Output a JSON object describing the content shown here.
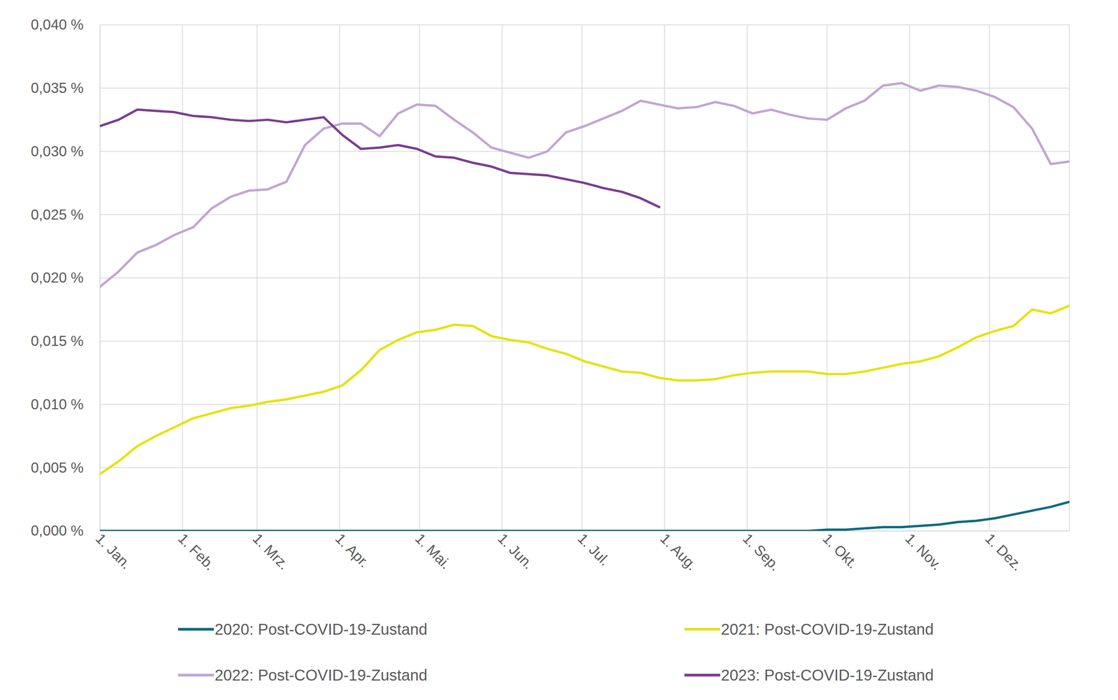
{
  "chart_data": {
    "type": "line",
    "x": [
      0,
      7,
      14,
      21,
      28,
      35,
      42,
      49,
      56,
      63,
      70,
      77,
      84,
      91,
      98,
      105,
      112,
      119,
      126,
      133,
      140,
      147,
      154,
      161,
      168,
      175,
      182,
      189,
      196,
      203,
      210,
      217,
      224,
      231,
      238,
      245,
      252,
      259,
      266,
      273,
      280,
      287,
      294,
      301,
      308,
      315,
      322,
      329,
      336,
      343,
      350,
      357,
      364
    ],
    "xlim": [
      0,
      364
    ],
    "xticks": [
      {
        "value": 0,
        "label": "1. Jan."
      },
      {
        "value": 31,
        "label": "1. Feb."
      },
      {
        "value": 59,
        "label": "1. Mrz."
      },
      {
        "value": 90,
        "label": "1. Apr."
      },
      {
        "value": 120,
        "label": "1. Mai."
      },
      {
        "value": 151,
        "label": "1. Jun."
      },
      {
        "value": 181,
        "label": "1. Jul."
      },
      {
        "value": 212,
        "label": "1. Aug."
      },
      {
        "value": 243,
        "label": "1. Sep."
      },
      {
        "value": 273,
        "label": "1. Okt."
      },
      {
        "value": 304,
        "label": "1. Nov."
      },
      {
        "value": 334,
        "label": "1. Dez."
      }
    ],
    "ylim": [
      0,
      0.04
    ],
    "yticks": [
      {
        "value": 0,
        "label": "0,000 %"
      },
      {
        "value": 0.005,
        "label": "0,005 %"
      },
      {
        "value": 0.01,
        "label": "0,010 %"
      },
      {
        "value": 0.015,
        "label": "0,015 %"
      },
      {
        "value": 0.02,
        "label": "0,020 %"
      },
      {
        "value": 0.025,
        "label": "0,025 %"
      },
      {
        "value": 0.03,
        "label": "0,030 %"
      },
      {
        "value": 0.035,
        "label": "0,035 %"
      },
      {
        "value": 0.04,
        "label": "0,040 %"
      }
    ],
    "grid": true,
    "legend": "bottom",
    "series": [
      {
        "name": "2020: Post-COVID-19-Zustand",
        "color": "#0e6a7e",
        "values": [
          0,
          0,
          0,
          0,
          0,
          0,
          0,
          0,
          0,
          0,
          0,
          0,
          0,
          0,
          0,
          0,
          0,
          0,
          0,
          0,
          0,
          0,
          0,
          0,
          0,
          0,
          0,
          0,
          0,
          0,
          0,
          0,
          0,
          0,
          0,
          0,
          0,
          0,
          0,
          0.0001,
          0.0001,
          0.0002,
          0.0003,
          0.0003,
          0.0004,
          0.0005,
          0.0007,
          0.0008,
          0.001,
          0.0013,
          0.0016,
          0.0019,
          0.0023
        ]
      },
      {
        "name": "2021: Post-COVID-19-Zustand",
        "color": "#e6e212",
        "values": [
          0.0045,
          0.0055,
          0.0067,
          0.0075,
          0.0082,
          0.0089,
          0.0093,
          0.0097,
          0.0099,
          0.0102,
          0.0104,
          0.0107,
          0.011,
          0.0115,
          0.0127,
          0.0143,
          0.0151,
          0.0157,
          0.0159,
          0.0163,
          0.0162,
          0.0154,
          0.0151,
          0.0149,
          0.0144,
          0.014,
          0.0134,
          0.013,
          0.0126,
          0.0125,
          0.0121,
          0.0119,
          0.0119,
          0.012,
          0.0123,
          0.0125,
          0.0126,
          0.0126,
          0.0126,
          0.0124,
          0.0124,
          0.0126,
          0.0129,
          0.0132,
          0.0134,
          0.0138,
          0.0145,
          0.0153,
          0.0158,
          0.0162,
          0.0175,
          0.0172,
          0.0178
        ]
      },
      {
        "name": "2022: Post-COVID-19-Zustand",
        "color": "#c2a5d3",
        "values": [
          0.0193,
          0.0205,
          0.022,
          0.0226,
          0.0234,
          0.024,
          0.0255,
          0.0264,
          0.0269,
          0.027,
          0.0276,
          0.0305,
          0.0318,
          0.0322,
          0.0322,
          0.0312,
          0.033,
          0.0337,
          0.0336,
          0.0325,
          0.0315,
          0.0303,
          0.0299,
          0.0295,
          0.03,
          0.0315,
          0.032,
          0.0326,
          0.0332,
          0.034,
          0.0337,
          0.0334,
          0.0335,
          0.0339,
          0.0336,
          0.033,
          0.0333,
          0.0329,
          0.0326,
          0.0325,
          0.0334,
          0.034,
          0.0352,
          0.0354,
          0.0348,
          0.0352,
          0.0351,
          0.0348,
          0.0343,
          0.0335,
          0.0318,
          0.029,
          0.0292
        ]
      },
      {
        "name": "2023: Post-COVID-19-Zustand",
        "color": "#7b3d8f",
        "values": [
          0.032,
          0.0325,
          0.0333,
          0.0332,
          0.0331,
          0.0328,
          0.0327,
          0.0325,
          0.0324,
          0.0325,
          0.0323,
          0.0325,
          0.0327,
          0.0313,
          0.0302,
          0.0303,
          0.0305,
          0.0302,
          0.0296,
          0.0295,
          0.0291,
          0.0288,
          0.0283,
          0.0282,
          0.0281,
          0.0278,
          0.0275,
          0.0271,
          0.0268,
          0.0263,
          0.0256,
          null,
          null,
          null,
          null,
          null,
          null,
          null,
          null,
          null,
          null,
          null,
          null,
          null,
          null,
          null,
          null,
          null,
          null,
          null,
          null,
          null,
          null
        ]
      }
    ]
  }
}
